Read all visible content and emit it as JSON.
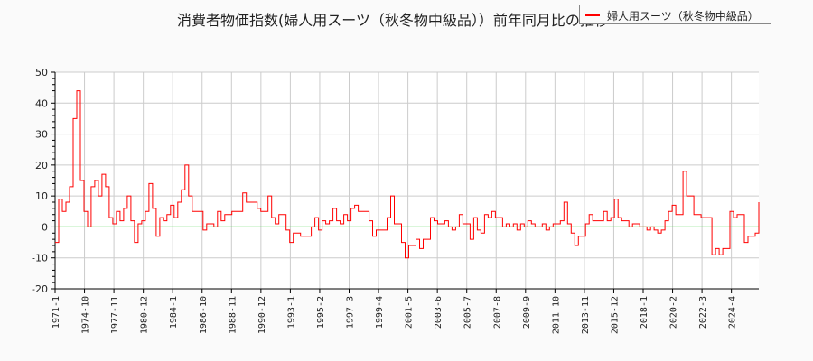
{
  "chart_data": {
    "type": "line",
    "title": "消費者物価指数(婦人用スーツ（秋冬物中級品））前年同月比の推移",
    "legend": {
      "position": "top-right",
      "entries": [
        "婦人用スーツ（秋冬物中級品）"
      ]
    },
    "series": [
      {
        "name": "婦人用スーツ（秋冬物中級品）",
        "color": "#ff0000",
        "values": [
          -5,
          9,
          5,
          8,
          13,
          35,
          44,
          15,
          5,
          0,
          13,
          15,
          10,
          17,
          13,
          3,
          1,
          5,
          2,
          6,
          10,
          2,
          -5,
          1,
          2,
          5,
          14,
          6,
          -3,
          3,
          2,
          4,
          7,
          3,
          8,
          12,
          20,
          10,
          5,
          5,
          5,
          -1,
          1,
          1,
          0,
          5,
          2,
          4,
          4,
          5,
          5,
          5,
          11,
          8,
          8,
          8,
          6,
          5,
          5,
          10,
          3,
          1,
          4,
          4,
          -1,
          -5,
          -2,
          -2,
          -3,
          -3,
          -3,
          0,
          3,
          -1,
          2,
          1,
          2,
          6,
          2,
          1,
          4,
          2,
          6,
          7,
          5,
          5,
          5,
          2,
          -3,
          -1,
          -1,
          -1,
          3,
          10,
          1,
          1,
          -5,
          -10,
          -6,
          -6,
          -4,
          -7,
          -4,
          -4,
          3,
          2,
          1,
          1,
          2,
          0,
          -1,
          0,
          4,
          1,
          1,
          -4,
          3,
          -1,
          -2,
          4,
          3,
          5,
          3,
          3,
          0,
          1,
          0,
          1,
          -1,
          1,
          0,
          2,
          1,
          0,
          0,
          1,
          -1,
          0,
          1,
          1,
          2,
          8,
          1,
          -2,
          -6,
          -3,
          -3,
          1,
          4,
          2,
          2,
          2,
          5,
          2,
          3,
          9,
          3,
          2,
          2,
          0,
          1,
          1,
          0,
          0,
          -1,
          0,
          -1,
          -2,
          -1,
          2,
          5,
          7,
          4,
          4,
          18,
          10,
          10,
          4,
          4,
          3,
          3,
          3,
          -9,
          -7,
          -9,
          -7,
          -7,
          5,
          3,
          4,
          4,
          -5,
          -3,
          -3,
          -2,
          8
        ]
      }
    ],
    "x_tick_labels": [
      "1971-1",
      "1974-10",
      "1977-11",
      "1980-12",
      "1984-1",
      "1986-10",
      "1988-11",
      "1990-12",
      "1993-1",
      "1995-2",
      "1997-3",
      "1999-4",
      "2001-5",
      "2003-6",
      "2005-7",
      "2007-8",
      "2009-9",
      "2011-10",
      "2013-11",
      "2015-12",
      "2018-1",
      "2020-2",
      "2022-3",
      "2024-4"
    ],
    "y_ticks": [
      -20,
      -10,
      0,
      10,
      20,
      30,
      40,
      50
    ],
    "ylim": [
      -20,
      50
    ],
    "grid": true,
    "zero_line_color": "#00dd00",
    "xlabel": "",
    "ylabel": ""
  }
}
